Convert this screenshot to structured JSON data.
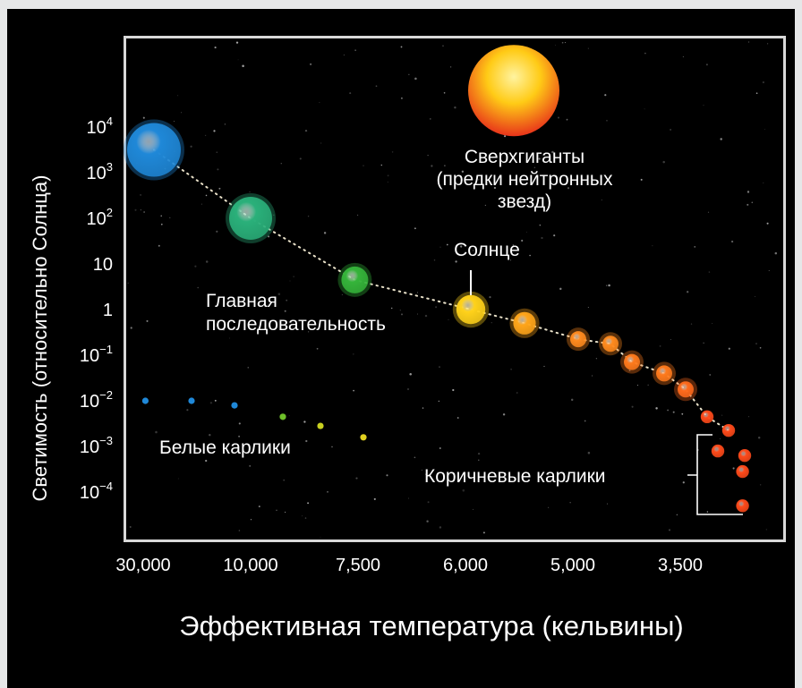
{
  "chart_data": {
    "type": "scatter",
    "title": "",
    "xlabel": "Эффективная температура (кельвины)",
    "ylabel": "Светимость (относительно Солнца)",
    "x_tick_labels": [
      "30,000",
      "10,000",
      "7,500",
      "6,000",
      "5,000",
      "3,500"
    ],
    "y_tick_labels": [
      {
        "base": "10",
        "exp": "4"
      },
      {
        "base": "10",
        "exp": "3"
      },
      {
        "base": "10",
        "exp": "2"
      },
      {
        "base": "10",
        "exp": ""
      },
      {
        "base": "1",
        "exp": ""
      },
      {
        "base": "10",
        "exp": "−1"
      },
      {
        "base": "10",
        "exp": "−2"
      },
      {
        "base": "10",
        "exp": "−3"
      },
      {
        "base": "10",
        "exp": "−4"
      }
    ],
    "y_scale": "log",
    "ylim": [
      -4.5,
      5
    ],
    "x_scale": "reversed, unevenly labeled",
    "grid": false,
    "background": "#000000",
    "annotations": [
      {
        "name": "supergiants",
        "lines": [
          "Сверхгиганты",
          "(предки нейтронных",
          "звезд)"
        ]
      },
      {
        "name": "sun",
        "lines": [
          "Солнце"
        ]
      },
      {
        "name": "main-sequence",
        "lines": [
          "Главная",
          "последовательность"
        ]
      },
      {
        "name": "white-dwarfs",
        "lines": [
          "Белые карлики"
        ]
      },
      {
        "name": "brown-dwarfs",
        "lines": [
          "Коричневые карлики"
        ]
      }
    ],
    "series": [
      {
        "group": "main-sequence",
        "points": [
          {
            "x": 0.1,
            "y": 3.5,
            "size": 5,
            "color": "#1f88d8"
          },
          {
            "x": 1.0,
            "y": 2.0,
            "size": 4,
            "color": "#2ab07a"
          },
          {
            "x": 1.97,
            "y": 0.65,
            "size": 2.5,
            "color": "#35b43a"
          },
          {
            "x": 3.05,
            "y": 0.0,
            "size": 2.7,
            "color": "#ffd21a"
          },
          {
            "x": 3.55,
            "y": -0.3,
            "size": 2.1,
            "color": "#ffa51a"
          },
          {
            "x": 4.05,
            "y": -0.65,
            "size": 1.5,
            "color": "#ff8a1e"
          },
          {
            "x": 4.35,
            "y": -0.75,
            "size": 1.5,
            "color": "#ff8a1e"
          },
          {
            "x": 4.55,
            "y": -1.15,
            "size": 1.5,
            "color": "#ff7a1c"
          },
          {
            "x": 4.85,
            "y": -1.4,
            "size": 1.5,
            "color": "#ff7a1c"
          },
          {
            "x": 5.05,
            "y": -1.75,
            "size": 1.5,
            "color": "#ff6a1c"
          }
        ]
      },
      {
        "group": "supergiant",
        "points": [
          {
            "x": 3.45,
            "y": 4.8,
            "size": 8.5,
            "color": "#ffcb16"
          }
        ]
      },
      {
        "group": "white-dwarfs",
        "points": [
          {
            "x": 0.02,
            "y": -2.0,
            "size": 0.6,
            "color": "#1f88d8"
          },
          {
            "x": 0.45,
            "y": -2.0,
            "size": 0.6,
            "color": "#1f88d8"
          },
          {
            "x": 0.85,
            "y": -2.1,
            "size": 0.6,
            "color": "#1f88d8"
          },
          {
            "x": 1.3,
            "y": -2.35,
            "size": 0.6,
            "color": "#6fc02a"
          },
          {
            "x": 1.65,
            "y": -2.55,
            "size": 0.6,
            "color": "#c8d020"
          },
          {
            "x": 2.05,
            "y": -2.8,
            "size": 0.6,
            "color": "#e0d020"
          }
        ]
      },
      {
        "group": "brown-dwarfs",
        "points": [
          {
            "x": 5.25,
            "y": -2.35,
            "size": 1.2,
            "color": "#ff4a1a"
          },
          {
            "x": 5.45,
            "y": -2.65,
            "size": 1.2,
            "color": "#ff4a1a"
          },
          {
            "x": 5.35,
            "y": -3.1,
            "size": 1.2,
            "color": "#ff4a1a"
          },
          {
            "x": 5.6,
            "y": -3.2,
            "size": 1.2,
            "color": "#ff4a1a"
          },
          {
            "x": 5.58,
            "y": -3.55,
            "size": 1.2,
            "color": "#ff4a1a"
          },
          {
            "x": 5.58,
            "y": -4.3,
            "size": 1.2,
            "color": "#ff4a1a"
          }
        ]
      }
    ]
  }
}
